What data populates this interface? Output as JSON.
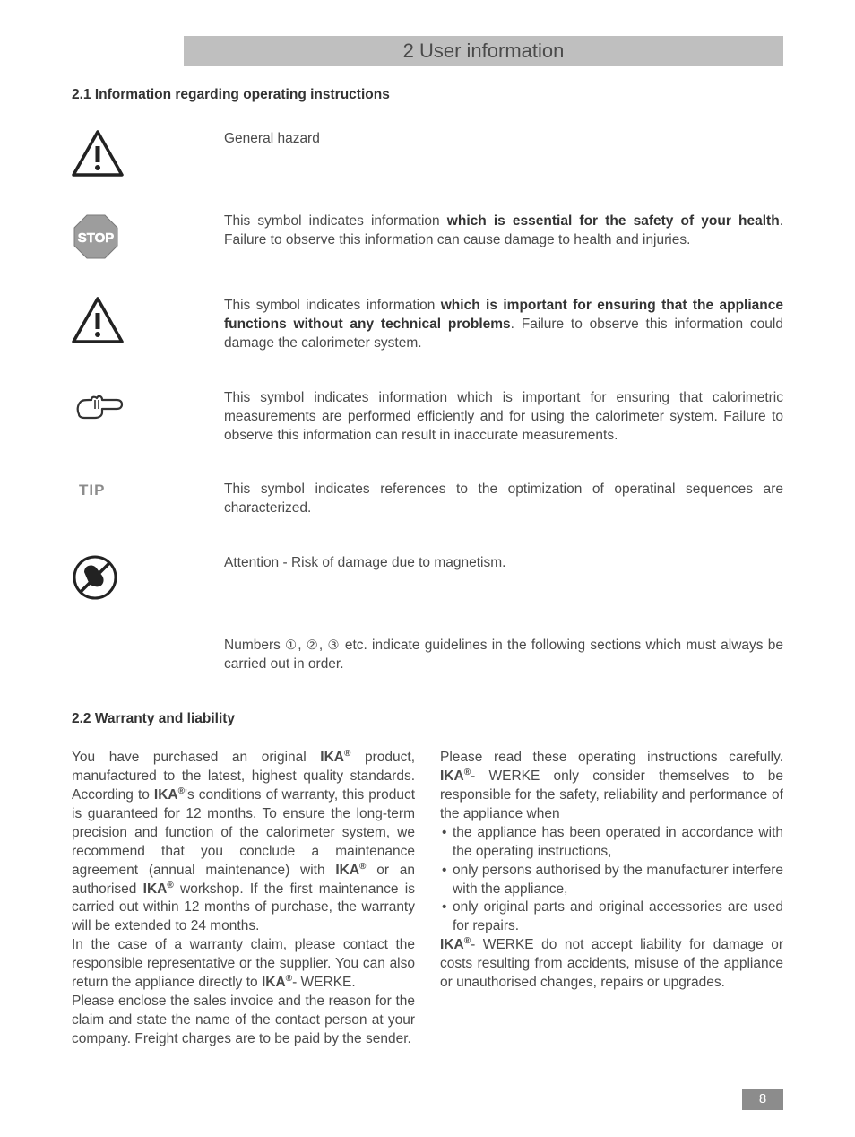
{
  "chapter_title": "2 User information",
  "section_2_1": {
    "heading": "2.1 Information regarding operating instructions",
    "rows": [
      {
        "icon": "warning-triangle",
        "text_html": "General hazard"
      },
      {
        "icon": "stop-sign",
        "text_html": "This symbol indicates information <strong>which is essential for the safety of your health</strong>. Failure to observe this information can cause damage to health and injuries."
      },
      {
        "icon": "warning-triangle",
        "text_html": "This symbol indicates information <strong>which is important for ensuring that the appliance functions without any technical problems</strong>. Failure to observe this information could damage the calorimeter system."
      },
      {
        "icon": "pointing-hand",
        "text_html": "This symbol indicates information which is important for ensuring that calorimetric measurements are performed efficiently and for using the calorimeter system. Failure to observe this information can result in inaccurate measurements."
      },
      {
        "icon": "tip-label",
        "label": "TIP",
        "text_html": "This symbol indicates references to the optimization of operatinal sequences are characterized."
      },
      {
        "icon": "magnet-warning",
        "text_html": "Attention - Risk of damage due to magnetism."
      },
      {
        "icon": "none",
        "text_html": "Numbers <span class='circled'>①</span>, <span class='circled'>②</span>, <span class='circled'>③</span> etc. indicate guidelines in the following sections which must always be carried out in order."
      }
    ]
  },
  "section_2_2": {
    "heading": "2.2 Warranty and liability",
    "col1_html": "You have purchased an original <strong>IKA<sup>®</sup></strong> product, manufactured to the latest, highest quality standards. According to <strong>IKA<sup>®</sup></strong>'s conditions of warranty, this product is guaranteed for 12 months. To ensure the long-term precision and function of the calorimeter system, we recommend that you conclude a maintenance agreement (annual maintenance) with <strong>IKA<sup>®</sup></strong> or an authorised <strong>IKA<sup>®</sup></strong> workshop. If the first maintenance is carried out within 12 months of purchase, the warranty will be extended to 24 months.<br>In the case of a warranty claim, please contact the responsible representative or the supplier. You can also return the appliance directly to <strong>IKA<sup>®</sup></strong>- WERKE.<br>Please enclose the sales invoice and the reason for the claim and state the name of the contact person at your company. Freight charges are to be paid by the sender.",
    "col2_html": "Please read these operating instructions carefully. <strong>IKA<sup>®</sup></strong>- WERKE only consider themselves to be responsible for the safety, reliability and performance of the appliance when",
    "col2_bullets": [
      "the appliance has been operated in accordance with the operating instructions,",
      "only persons authorised by the manufacturer interfere with the appliance,",
      "only original parts and original accessories are used for repairs."
    ],
    "col2_after_html": "<strong>IKA<sup>®</sup></strong>- WERKE do not accept liability for damage or costs resulting from accidents, misuse of the appliance or unauthorised changes, repairs or upgrades."
  },
  "page_number": "8",
  "colors": {
    "bar_bg": "#bfbfbf",
    "text": "#4a4a4a",
    "strong": "#333333",
    "pagenum_bg": "#8c8c8c",
    "tip_gray": "#8c8c8c"
  }
}
